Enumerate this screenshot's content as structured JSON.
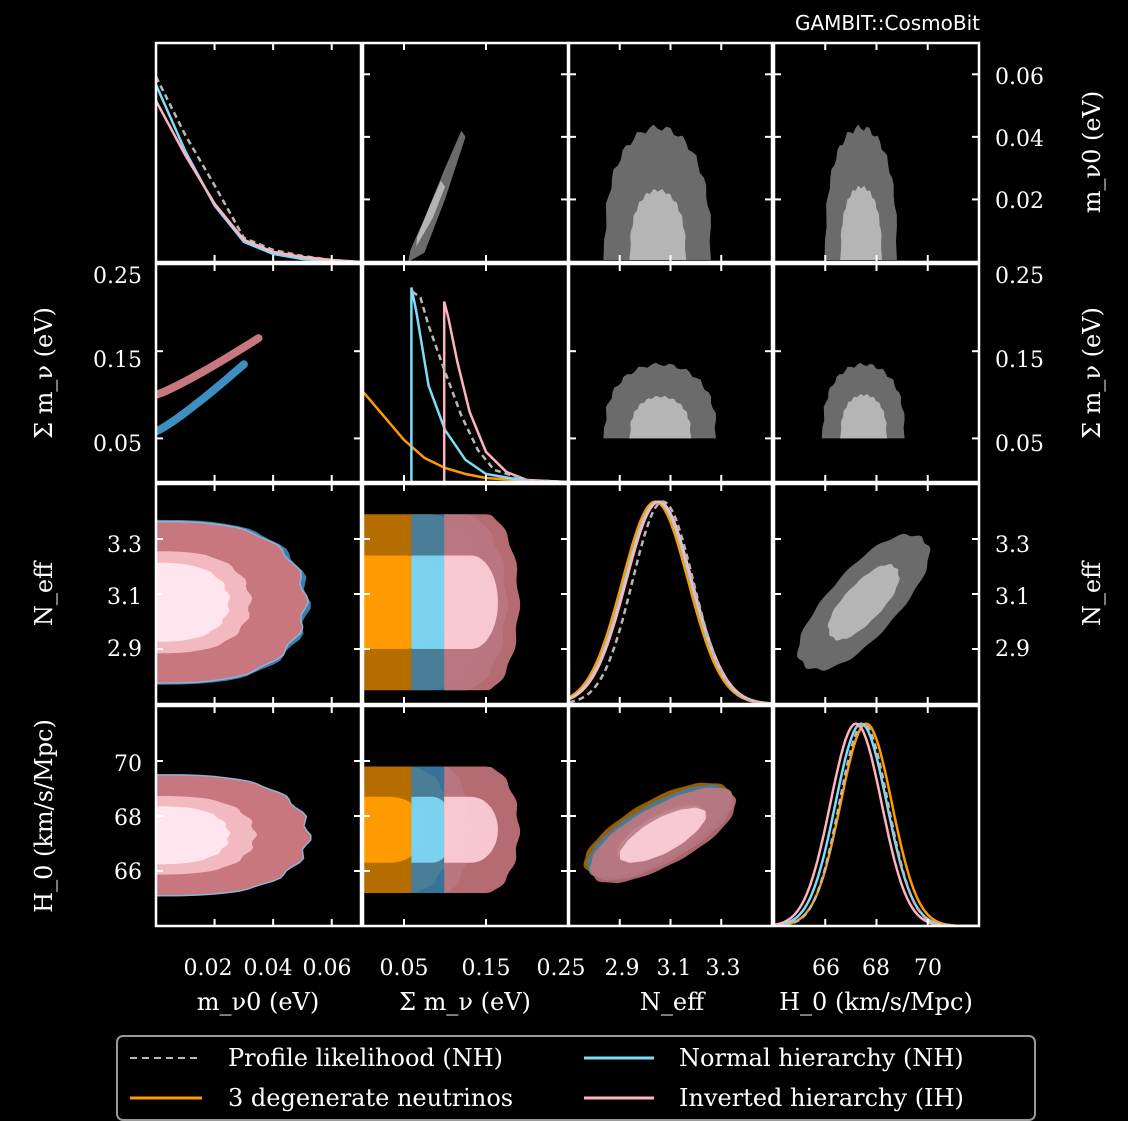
{
  "watermark": "GAMBIT::CosmoBit",
  "colors": {
    "background": "#000000",
    "frame": "#ffffff",
    "profile": "#b8b8b8",
    "degenerate": "#ff9a00",
    "normal": "#7fdcf7",
    "inverted": "#ffb3bd",
    "normal_outer": "#3d8fbf",
    "inverted_outer": "#c8777e",
    "gray_outer": "#6b6b6b",
    "gray_inner": "#b5b5b5"
  },
  "legend": {
    "items": [
      {
        "label": "Profile likelihood (NH)",
        "style": "dashed",
        "color": "#b8b8b8"
      },
      {
        "label": "Normal hierarchy (NH)",
        "style": "solid",
        "color": "#7fdcf7"
      },
      {
        "label": "3 degenerate neutrinos",
        "style": "solid",
        "color": "#ff9a00"
      },
      {
        "label": "Inverted hierarchy (IH)",
        "style": "solid",
        "color": "#ffb3bd"
      }
    ]
  },
  "chart_data": {
    "type": "triangle-corner-plot",
    "parameters": [
      {
        "id": "m_nu0",
        "label": "m_ν0 (eV)",
        "range": [
          0,
          0.07
        ],
        "ticks": [
          0.02,
          0.04,
          0.06
        ],
        "tick_labels": [
          "0.02",
          "0.04",
          "0.06"
        ]
      },
      {
        "id": "sum_mnu",
        "label": "Σ m_ν (eV)",
        "range": [
          0,
          0.25
        ],
        "ticks": [
          0.05,
          0.15,
          0.25
        ],
        "tick_labels": [
          "0.05",
          "0.15",
          "0.25"
        ]
      },
      {
        "id": "N_eff",
        "label": "N_eff",
        "range": [
          2.7,
          3.5
        ],
        "ticks": [
          2.9,
          3.1,
          3.3
        ],
        "tick_labels": [
          "2.9",
          "3.1",
          "3.3"
        ]
      },
      {
        "id": "H0",
        "label": "H_0 (km/s/Mpc)",
        "range": [
          64,
          72
        ],
        "ticks": [
          66,
          68,
          70
        ],
        "tick_labels": [
          "66",
          "68",
          "70"
        ]
      }
    ],
    "bottom_axis_labels": {
      "m_nu0": "m_ν0 (eV)",
      "sum_mnu": "Σ m_ν (eV)",
      "N_eff": "N_eff",
      "H0": "H_0 (km/s/Mpc)"
    },
    "left_axis_labels": {
      "sum_mnu": "Σ m_ν (eV)",
      "N_eff": "N_eff",
      "H0": "H_0 (km/s/Mpc)"
    },
    "right_axis_labels": {
      "m_nu0": "m_ν0 (eV)",
      "sum_mnu": "Σ m_ν (eV)",
      "N_eff": "N_eff"
    },
    "diagonals": {
      "m_nu0": {
        "series": [
          {
            "name": "Profile likelihood (NH)",
            "x": [
              0.0,
              0.01,
              0.02,
              0.03,
              0.04,
              0.05,
              0.06,
              0.07
            ],
            "y": [
              0.92,
              0.63,
              0.38,
              0.12,
              0.06,
              0.03,
              0.01,
              0.0
            ]
          },
          {
            "name": "Normal hierarchy (NH)",
            "x": [
              0.0,
              0.01,
              0.02,
              0.03,
              0.04,
              0.05,
              0.06,
              0.07
            ],
            "y": [
              0.88,
              0.55,
              0.28,
              0.1,
              0.04,
              0.015,
              0.005,
              0.0
            ]
          },
          {
            "name": "Inverted hierarchy (IH)",
            "x": [
              0.0,
              0.01,
              0.02,
              0.03,
              0.04,
              0.05,
              0.06,
              0.07
            ],
            "y": [
              0.8,
              0.53,
              0.29,
              0.11,
              0.05,
              0.025,
              0.01,
              0.0
            ]
          }
        ]
      },
      "sum_mnu": {
        "series": [
          {
            "name": "3 degenerate neutrinos",
            "x": [
              0.0,
              0.025,
              0.05,
              0.075,
              0.1,
              0.125,
              0.15,
              0.2,
              0.25
            ],
            "y": [
              0.45,
              0.33,
              0.21,
              0.12,
              0.07,
              0.04,
              0.02,
              0.005,
              0.0
            ]
          },
          {
            "name": "Normal hierarchy (NH)",
            "x": [
              0.059,
              0.059,
              0.065,
              0.08,
              0.1,
              0.125,
              0.15,
              0.2,
              0.25
            ],
            "y": [
              0.0,
              0.97,
              0.85,
              0.48,
              0.26,
              0.11,
              0.04,
              0.005,
              0.0
            ]
          },
          {
            "name": "Inverted hierarchy (IH)",
            "x": [
              0.099,
              0.099,
              0.104,
              0.115,
              0.13,
              0.15,
              0.175,
              0.2,
              0.25
            ],
            "y": [
              0.0,
              0.9,
              0.82,
              0.6,
              0.35,
              0.15,
              0.05,
              0.01,
              0.0
            ]
          },
          {
            "name": "Profile likelihood (NH)",
            "x": [
              0.06,
              0.07,
              0.08,
              0.1,
              0.12,
              0.14,
              0.16,
              0.2,
              0.25
            ],
            "y": [
              0.95,
              0.92,
              0.78,
              0.55,
              0.33,
              0.16,
              0.06,
              0.01,
              0.0
            ]
          }
        ]
      },
      "N_eff": {
        "series": [
          {
            "name": "3 degenerate neutrinos",
            "mean": 3.04,
            "sigma": 0.13
          },
          {
            "name": "Normal hierarchy (NH)",
            "mean": 3.05,
            "sigma": 0.13
          },
          {
            "name": "Inverted hierarchy (IH)",
            "mean": 3.055,
            "sigma": 0.13
          },
          {
            "name": "Profile likelihood (NH)",
            "mean": 3.07,
            "sigma": 0.12
          }
        ]
      },
      "H0": {
        "series": [
          {
            "name": "3 degenerate neutrinos",
            "mean": 67.6,
            "sigma": 1.0
          },
          {
            "name": "Normal hierarchy (NH)",
            "mean": 67.4,
            "sigma": 1.0
          },
          {
            "name": "Inverted hierarchy (IH)",
            "mean": 67.2,
            "sigma": 1.0
          },
          {
            "name": "Profile likelihood (NH)",
            "mean": 67.5,
            "sigma": 0.95
          }
        ]
      }
    },
    "upper_triangle": [
      {
        "x": "sum_mnu",
        "y": "m_nu0",
        "contours": [
          {
            "level": "outer",
            "points": [
              [
                0.055,
                0.002
              ],
              [
                0.06,
                0.0
              ],
              [
                0.08,
                0.008
              ],
              [
                0.11,
                0.04
              ],
              [
                0.125,
                0.04
              ],
              [
                0.12,
                0.034
              ],
              [
                0.09,
                0.01
              ],
              [
                0.07,
                0.0
              ]
            ]
          },
          {
            "level": "inner",
            "points": [
              [
                0.07,
                0.005
              ],
              [
                0.09,
                0.018
              ],
              [
                0.1,
                0.022
              ],
              [
                0.085,
                0.012
              ]
            ]
          }
        ]
      },
      {
        "x": "N_eff",
        "y": "m_nu0",
        "shape": "arch",
        "center": 3.05,
        "outer_halfwidth": 0.21,
        "outer_top": 0.043,
        "inner_halfwidth": 0.11,
        "inner_top": 0.023
      },
      {
        "x": "H0",
        "y": "m_nu0",
        "shape": "arch",
        "center": 67.4,
        "outer_halfwidth": 1.4,
        "outer_top": 0.043,
        "inner_halfwidth": 0.8,
        "inner_top": 0.024
      },
      {
        "x": "N_eff",
        "y": "sum_mnu",
        "shape": "arch",
        "center": 3.06,
        "outer_halfwidth": 0.22,
        "outer_top": 0.135,
        "outer_bottom": 0.05,
        "inner_halfwidth": 0.12,
        "inner_top": 0.098,
        "inner_bottom": 0.05
      },
      {
        "x": "H0",
        "y": "sum_mnu",
        "shape": "arch",
        "center": 67.5,
        "outer_halfwidth": 1.6,
        "outer_top": 0.135,
        "outer_bottom": 0.05,
        "inner_halfwidth": 0.9,
        "inner_top": 0.1,
        "inner_bottom": 0.05
      },
      {
        "x": "H0",
        "y": "N_eff",
        "shape": "tilted-ellipse",
        "center": [
          67.5,
          3.07
        ],
        "outer_radii": [
          2.0,
          0.26
        ],
        "inner_radii": [
          1.1,
          0.13
        ],
        "correlation": 0.85
      }
    ],
    "lower_triangle": [
      {
        "x": "m_nu0",
        "y": "sum_mnu",
        "bands": [
          {
            "name": "Inverted hierarchy (IH)",
            "points": [
              [
                0.0,
                0.1
              ],
              [
                0.035,
                0.165
              ]
            ]
          },
          {
            "name": "Normal hierarchy (NH)",
            "points": [
              [
                0.0,
                0.058
              ],
              [
                0.03,
                0.135
              ]
            ]
          }
        ]
      },
      {
        "x": "m_nu0",
        "y": "N_eff",
        "regions": [
          {
            "name": "Inverted hierarchy (IH)",
            "center": 3.07,
            "outer_halfwidth": 0.3,
            "max_x": 0.052
          },
          {
            "name": "Normal hierarchy (NH)",
            "center": 3.05,
            "outer_halfwidth": 0.3,
            "max_x": 0.045
          }
        ]
      },
      {
        "x": "sum_mnu",
        "y": "N_eff",
        "regions": [
          {
            "name": "3 degenerate neutrinos",
            "x_range": [
              0.0,
              0.155
            ]
          },
          {
            "name": "Normal hierarchy (NH)",
            "x_range": [
              0.059,
              0.18
            ]
          },
          {
            "name": "Inverted hierarchy (IH)",
            "x_range": [
              0.099,
              0.19
            ]
          }
        ]
      },
      {
        "x": "m_nu0",
        "y": "H0",
        "regions": [
          {
            "name": "Inverted hierarchy (IH)",
            "center": 67.3,
            "outer_halfwidth": 2.2,
            "max_x": 0.052
          }
        ]
      },
      {
        "x": "sum_mnu",
        "y": "H0",
        "regions": [
          {
            "name": "3 degenerate neutrinos",
            "x_range": [
              0.0,
              0.11
            ]
          },
          {
            "name": "Normal hierarchy (NH)",
            "x_range": [
              0.059,
              0.13
            ]
          },
          {
            "name": "Inverted hierarchy (IH)",
            "x_range": [
              0.099,
              0.19
            ]
          }
        ]
      },
      {
        "x": "N_eff",
        "y": "H0",
        "ellipses": [
          {
            "name": "3 degenerate neutrinos",
            "center": [
              3.05,
              67.5
            ]
          },
          {
            "name": "Normal hierarchy (NH)",
            "center": [
              3.06,
              67.4
            ]
          },
          {
            "name": "Inverted hierarchy (IH)",
            "center": [
              3.07,
              67.3
            ]
          }
        ]
      }
    ]
  }
}
